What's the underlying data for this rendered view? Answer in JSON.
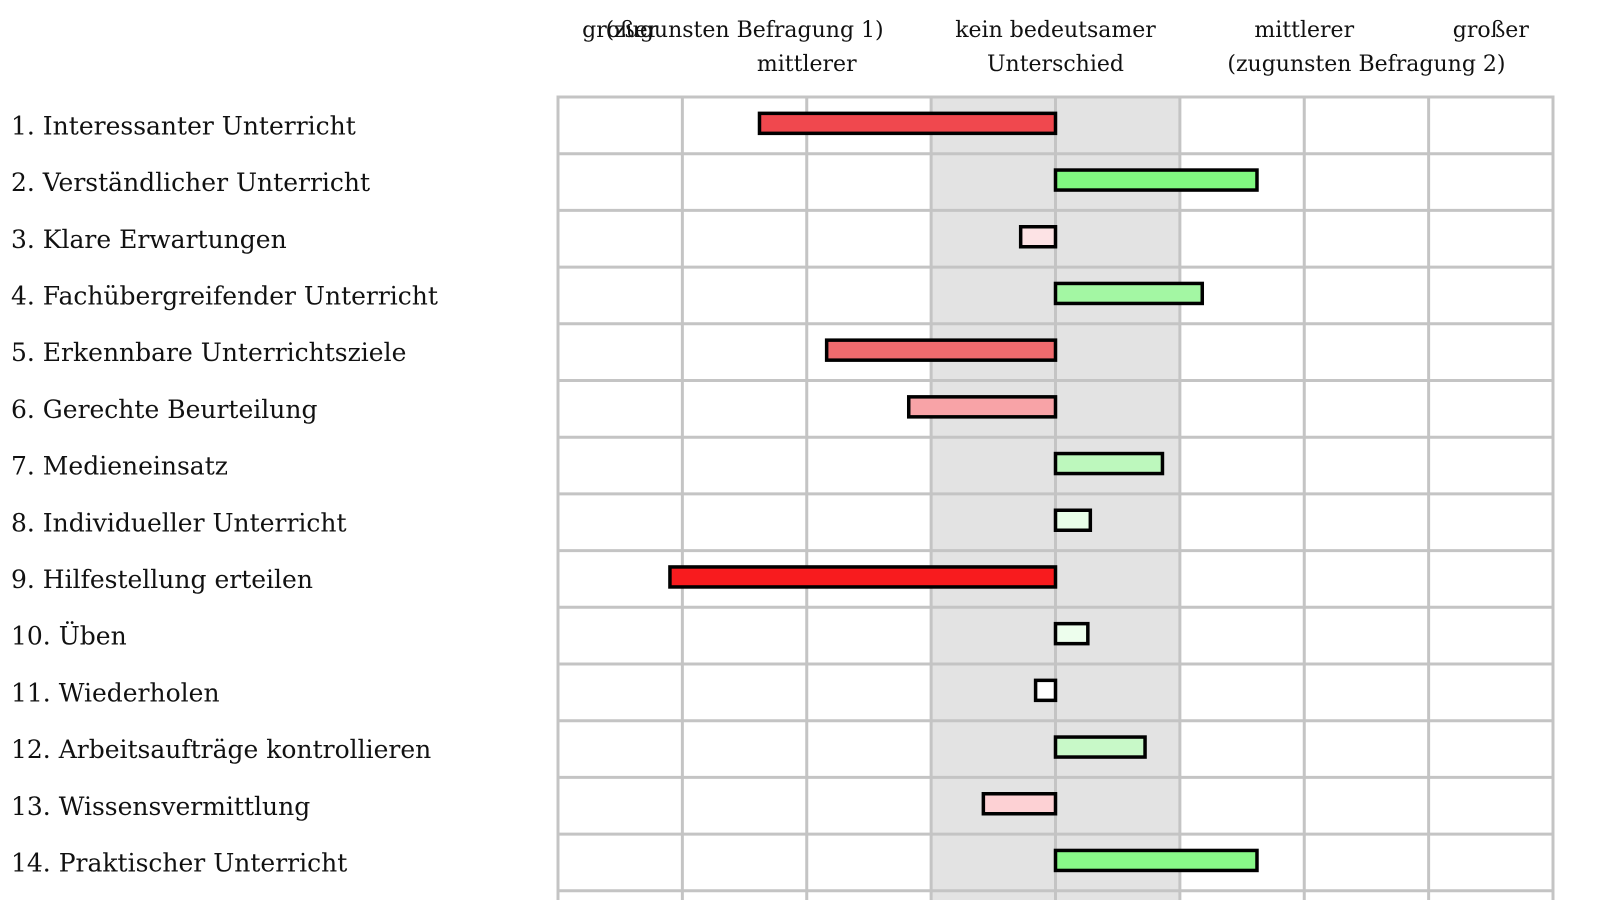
{
  "chart_data": {
    "type": "bar",
    "orientation": "horizontal",
    "x_range": [
      -2,
      2
    ],
    "neutral_band": [
      -0.5,
      0.5
    ],
    "grid": true,
    "header": [
      {
        "text": "großer",
        "at": -1.75
      },
      {
        "text": "mittlerer",
        "at": -1.0
      },
      {
        "text": "(zugunsten Befragung 1)",
        "at": -1.25
      },
      {
        "text": "kein bedeutsamer",
        "at": 0.0
      },
      {
        "text": "Unterschied",
        "at": 0.0
      },
      {
        "text": "mittlerer",
        "at": 1.0
      },
      {
        "text": "(zugunsten Befragung 2)",
        "at": 1.25
      },
      {
        "text": "großer",
        "at": 1.75
      }
    ],
    "categories": [
      "1. Interessanter Unterricht",
      "2. Verständlicher Unterricht",
      "3. Klare Erwartungen",
      "4. Fachübergreifender Unterricht",
      "5. Erkennbare Unterrichtsziele",
      "6. Gerechte Beurteilung",
      "7. Medieneinsatz",
      "8. Individueller Unterricht",
      "9. Hilfestellung erteilen",
      "10. Üben",
      "11. Wiederholen",
      "12. Arbeitsaufträge kontrollieren",
      "13. Wissensvermittlung",
      "14. Praktischer Unterricht"
    ],
    "values": [
      -1.19,
      0.81,
      -0.14,
      0.59,
      -0.92,
      -0.59,
      0.43,
      0.14,
      -1.55,
      0.13,
      -0.08,
      0.36,
      -0.29,
      0.81
    ],
    "colors": [
      "#f0484e",
      "#80f880",
      "#fde3e5",
      "#a3f7a3",
      "#f06b6e",
      "#f8a3a7",
      "#bdf8bd",
      "#e8fee8",
      "#f81b1e",
      "#edfeed",
      "#ffffff",
      "#c8f9c8",
      "#fdd1d4",
      "#88f888"
    ],
    "band_color": "#e3e3e3",
    "grid_color": "#c4c4c4"
  }
}
